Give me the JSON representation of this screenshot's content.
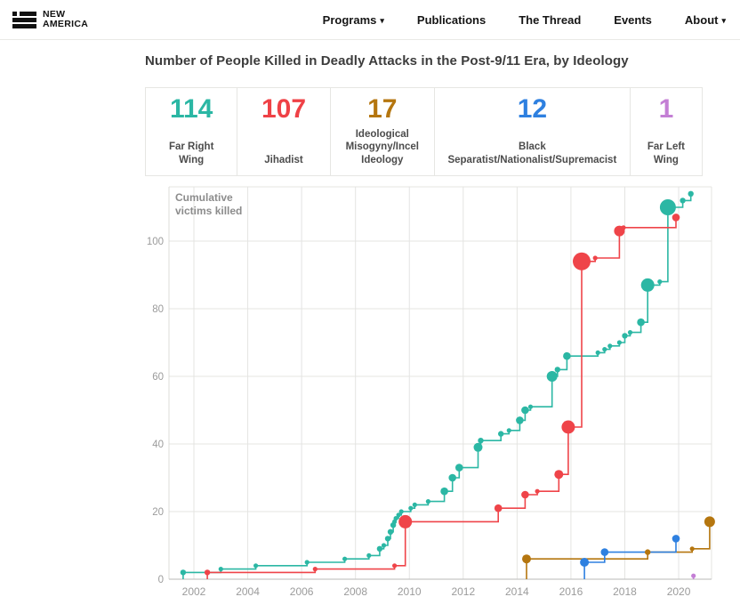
{
  "header": {
    "logo": {
      "line1": "NEW",
      "line2": "AMERICA"
    },
    "nav": [
      {
        "label": "Programs",
        "caret": true
      },
      {
        "label": "Publications",
        "caret": false
      },
      {
        "label": "The Thread",
        "caret": false
      },
      {
        "label": "Events",
        "caret": false
      },
      {
        "label": "About",
        "caret": true
      }
    ]
  },
  "title": "Number of People Killed in Deadly Attacks in the Post-9/11 Era, by Ideology",
  "stats": [
    {
      "value": "114",
      "label_lines": [
        "Far Right",
        "Wing"
      ],
      "color": "#2bb7a4",
      "slug": "far-right-wing",
      "flex": 102
    },
    {
      "value": "107",
      "label_lines": [
        "Jihadist"
      ],
      "color": "#ef4146",
      "slug": "jihadist",
      "flex": 103
    },
    {
      "value": "17",
      "label_lines": [
        "Ideological",
        "Misogyny/Incel",
        "Ideology"
      ],
      "color": "#b5760f",
      "slug": "ideological-misogyny-incel",
      "flex": 117
    },
    {
      "value": "12",
      "label_lines": [
        "Black",
        "Separatist/Nationalist/Supremacist"
      ],
      "color": "#2e80e0",
      "slug": "black-separatist-nationalist-supremacist",
      "flex": 228
    },
    {
      "value": "1",
      "label_lines": [
        "Far Left",
        "Wing"
      ],
      "color": "#c47fd5",
      "slug": "far-left-wing",
      "flex": 78
    }
  ],
  "chart_data": {
    "type": "line",
    "subtype": "cumulative-step-with-event-dots",
    "title": "Number of People Killed in Deadly Attacks in the Post-9/11 Era, by Ideology",
    "ylabel": "Cumulative victims killed",
    "ylabel_lines": [
      "Cumulative",
      "victims killed"
    ],
    "xlabel": "",
    "xlim": [
      2001.1,
      2021.3
    ],
    "ylim": [
      0,
      115
    ],
    "yticks": [
      0,
      20,
      40,
      60,
      80,
      100
    ],
    "xticks": [
      2002,
      2004,
      2006,
      2008,
      2010,
      2012,
      2014,
      2016,
      2018,
      2020
    ],
    "grid": true,
    "legend_position": "none",
    "marker_note": "dot size proportional to victims killed in each attack",
    "series": [
      {
        "name": "Far Right Wing",
        "color": "#2bb7a4",
        "total": 114,
        "points": [
          [
            2001.6,
            2
          ],
          [
            2003.0,
            3
          ],
          [
            2004.3,
            4
          ],
          [
            2006.2,
            5
          ],
          [
            2007.6,
            6
          ],
          [
            2008.5,
            7
          ],
          [
            2008.9,
            9
          ],
          [
            2009.05,
            10
          ],
          [
            2009.2,
            12
          ],
          [
            2009.3,
            14
          ],
          [
            2009.4,
            16
          ],
          [
            2009.45,
            17
          ],
          [
            2009.5,
            18
          ],
          [
            2009.6,
            19
          ],
          [
            2009.7,
            20
          ],
          [
            2010.05,
            21
          ],
          [
            2010.2,
            22
          ],
          [
            2010.7,
            23
          ],
          [
            2011.3,
            26
          ],
          [
            2011.6,
            30
          ],
          [
            2011.85,
            33
          ],
          [
            2012.55,
            39
          ],
          [
            2012.65,
            41
          ],
          [
            2013.4,
            43
          ],
          [
            2013.7,
            44
          ],
          [
            2014.1,
            47
          ],
          [
            2014.3,
            50
          ],
          [
            2014.5,
            51
          ],
          [
            2015.3,
            60
          ],
          [
            2015.5,
            62
          ],
          [
            2015.85,
            66
          ],
          [
            2017.0,
            67
          ],
          [
            2017.25,
            68
          ],
          [
            2017.45,
            69
          ],
          [
            2017.8,
            70
          ],
          [
            2018.0,
            72
          ],
          [
            2018.2,
            73
          ],
          [
            2018.6,
            76
          ],
          [
            2018.85,
            87
          ],
          [
            2019.3,
            88
          ],
          [
            2019.6,
            110
          ],
          [
            2020.15,
            112
          ],
          [
            2020.45,
            114
          ]
        ]
      },
      {
        "name": "Jihadist",
        "color": "#ef4449",
        "total": 107,
        "points": [
          [
            2002.5,
            2
          ],
          [
            2006.5,
            3
          ],
          [
            2009.45,
            4
          ],
          [
            2009.85,
            17
          ],
          [
            2013.3,
            21
          ],
          [
            2014.3,
            25
          ],
          [
            2014.75,
            26
          ],
          [
            2015.55,
            31
          ],
          [
            2015.9,
            45
          ],
          [
            2016.4,
            94
          ],
          [
            2016.9,
            95
          ],
          [
            2017.8,
            103
          ],
          [
            2017.95,
            104
          ],
          [
            2019.9,
            107
          ]
        ]
      },
      {
        "name": "Ideological Misogyny/Incel Ideology",
        "color": "#b5760f",
        "total": 17,
        "points": [
          [
            2014.35,
            6
          ],
          [
            2018.85,
            8
          ],
          [
            2020.5,
            9
          ],
          [
            2021.15,
            17
          ]
        ]
      },
      {
        "name": "Black Separatist/Nationalist/Supremacist",
        "color": "#2e80e0",
        "total": 12,
        "points": [
          [
            2016.5,
            5
          ],
          [
            2017.25,
            8
          ],
          [
            2019.9,
            12
          ]
        ]
      },
      {
        "name": "Far Left Wing",
        "color": "#c47fd5",
        "total": 1,
        "points": [
          [
            2020.55,
            1
          ]
        ]
      }
    ]
  }
}
